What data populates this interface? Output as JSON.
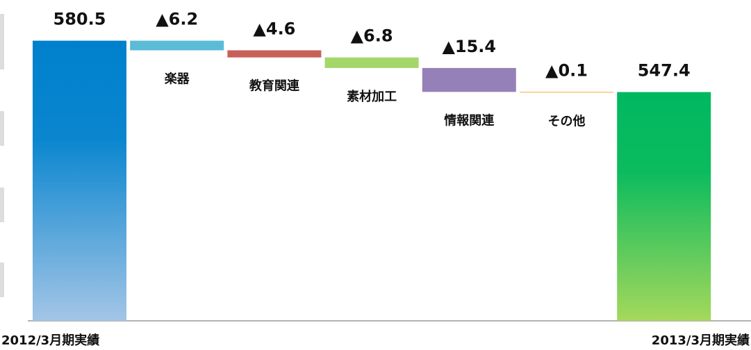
{
  "chart_data": {
    "type": "waterfall",
    "categories": [
      "2012/3月期実績",
      "楽器",
      "教育関連",
      "素材加工",
      "情報関連",
      "その他",
      "2013/3月期実績"
    ],
    "values": [
      580.5,
      -6.2,
      -4.6,
      -6.8,
      -15.4,
      -0.1,
      547.4
    ],
    "value_labels": [
      "580.5",
      "▲6.2",
      "▲4.6",
      "▲6.8",
      "▲15.4",
      "▲0.1",
      "547.4"
    ],
    "colors": [
      "#0080cc",
      "#5bbcd6",
      "#c8605a",
      "#a5d66a",
      "#9580b8",
      "#f0b030",
      "#00b860"
    ],
    "ylim": [
      400,
      600
    ]
  }
}
